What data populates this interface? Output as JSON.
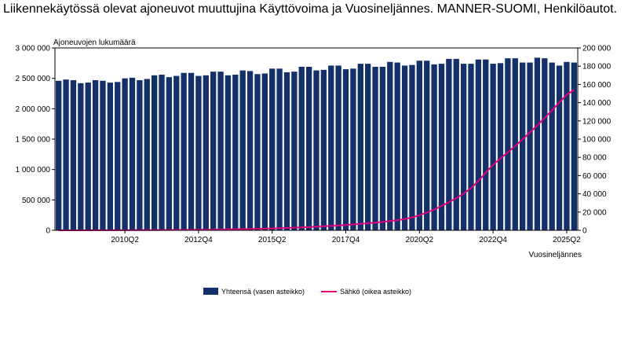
{
  "title": "Liikennekäytössä olevat ajoneuvot muuttujina Käyttövoima ja Vuosineljännes. MANNER-SUOMI, Henkilöautot.",
  "chart_data": {
    "type": "bar",
    "ylabel_left": "Ajoneuvojen lukumäärä",
    "xlabel": "Vuosineljännes",
    "y_left_range": [
      0,
      3000000
    ],
    "y_right_range": [
      0,
      200000
    ],
    "y_left_ticks": [
      "0",
      "500 000",
      "1 000 000",
      "1 500 000",
      "2 000 000",
      "2 500 000",
      "3 000 000"
    ],
    "y_right_ticks": [
      "0",
      "20 000",
      "40 000",
      "60 000",
      "80 000",
      "100 000",
      "120 000",
      "140 000",
      "160 000",
      "180 000",
      "200 000"
    ],
    "x_tick_labels": [
      "2010Q2",
      "2012Q4",
      "2015Q2",
      "2017Q4",
      "2020Q2",
      "2022Q4",
      "2025Q2"
    ],
    "categories": [
      "2008Q1",
      "2008Q2",
      "2008Q3",
      "2008Q4",
      "2009Q1",
      "2009Q2",
      "2009Q3",
      "2009Q4",
      "2010Q1",
      "2010Q2",
      "2010Q3",
      "2010Q4",
      "2011Q1",
      "2011Q2",
      "2011Q3",
      "2011Q4",
      "2012Q1",
      "2012Q2",
      "2012Q3",
      "2012Q4",
      "2013Q1",
      "2013Q2",
      "2013Q3",
      "2013Q4",
      "2014Q1",
      "2014Q2",
      "2014Q3",
      "2014Q4",
      "2015Q1",
      "2015Q2",
      "2015Q3",
      "2015Q4",
      "2016Q1",
      "2016Q2",
      "2016Q3",
      "2016Q4",
      "2017Q1",
      "2017Q2",
      "2017Q3",
      "2017Q4",
      "2018Q1",
      "2018Q2",
      "2018Q3",
      "2018Q4",
      "2019Q1",
      "2019Q2",
      "2019Q3",
      "2019Q4",
      "2020Q1",
      "2020Q2",
      "2020Q3",
      "2020Q4",
      "2021Q1",
      "2021Q2",
      "2021Q3",
      "2021Q4",
      "2022Q1",
      "2022Q2",
      "2022Q3",
      "2022Q4",
      "2023Q1",
      "2023Q2",
      "2023Q3",
      "2023Q4",
      "2024Q1",
      "2024Q2",
      "2024Q3",
      "2024Q4",
      "2025Q1",
      "2025Q2",
      "2025Q3"
    ],
    "series": [
      {
        "name": "Yhteensä (vasen asteikko)",
        "axis": "left",
        "color": "#14306b",
        "values": [
          2460000,
          2480000,
          2470000,
          2420000,
          2430000,
          2470000,
          2460000,
          2430000,
          2440000,
          2500000,
          2510000,
          2470000,
          2490000,
          2550000,
          2560000,
          2520000,
          2540000,
          2590000,
          2590000,
          2540000,
          2550000,
          2610000,
          2610000,
          2550000,
          2560000,
          2630000,
          2620000,
          2570000,
          2580000,
          2660000,
          2660000,
          2600000,
          2610000,
          2690000,
          2690000,
          2630000,
          2640000,
          2710000,
          2710000,
          2650000,
          2660000,
          2740000,
          2740000,
          2690000,
          2690000,
          2770000,
          2760000,
          2710000,
          2720000,
          2790000,
          2790000,
          2730000,
          2740000,
          2820000,
          2820000,
          2740000,
          2740000,
          2810000,
          2810000,
          2740000,
          2750000,
          2830000,
          2830000,
          2760000,
          2760000,
          2840000,
          2830000,
          2760000,
          2710000,
          2770000,
          2760000
        ]
      },
      {
        "name": "Sähkö (oikea asteikko)",
        "axis": "right",
        "color": "#e0007a",
        "values": [
          20,
          25,
          30,
          40,
          50,
          60,
          75,
          90,
          110,
          130,
          160,
          190,
          220,
          260,
          300,
          350,
          400,
          460,
          530,
          610,
          700,
          800,
          910,
          1030,
          1160,
          1300,
          1460,
          1640,
          1840,
          2060,
          2300,
          2570,
          2870,
          3200,
          3560,
          3950,
          4370,
          4830,
          5330,
          5870,
          6450,
          7070,
          7740,
          8450,
          9230,
          10100,
          11100,
          12300,
          14200,
          16500,
          19500,
          22800,
          26600,
          30800,
          35200,
          40300,
          46200,
          54100,
          63200,
          71800,
          78800,
          85600,
          92500,
          99800,
          107300,
          115100,
          123200,
          131600,
          140200,
          148700,
          154000
        ]
      }
    ],
    "legend_position": "bottom-center",
    "grid": false
  }
}
